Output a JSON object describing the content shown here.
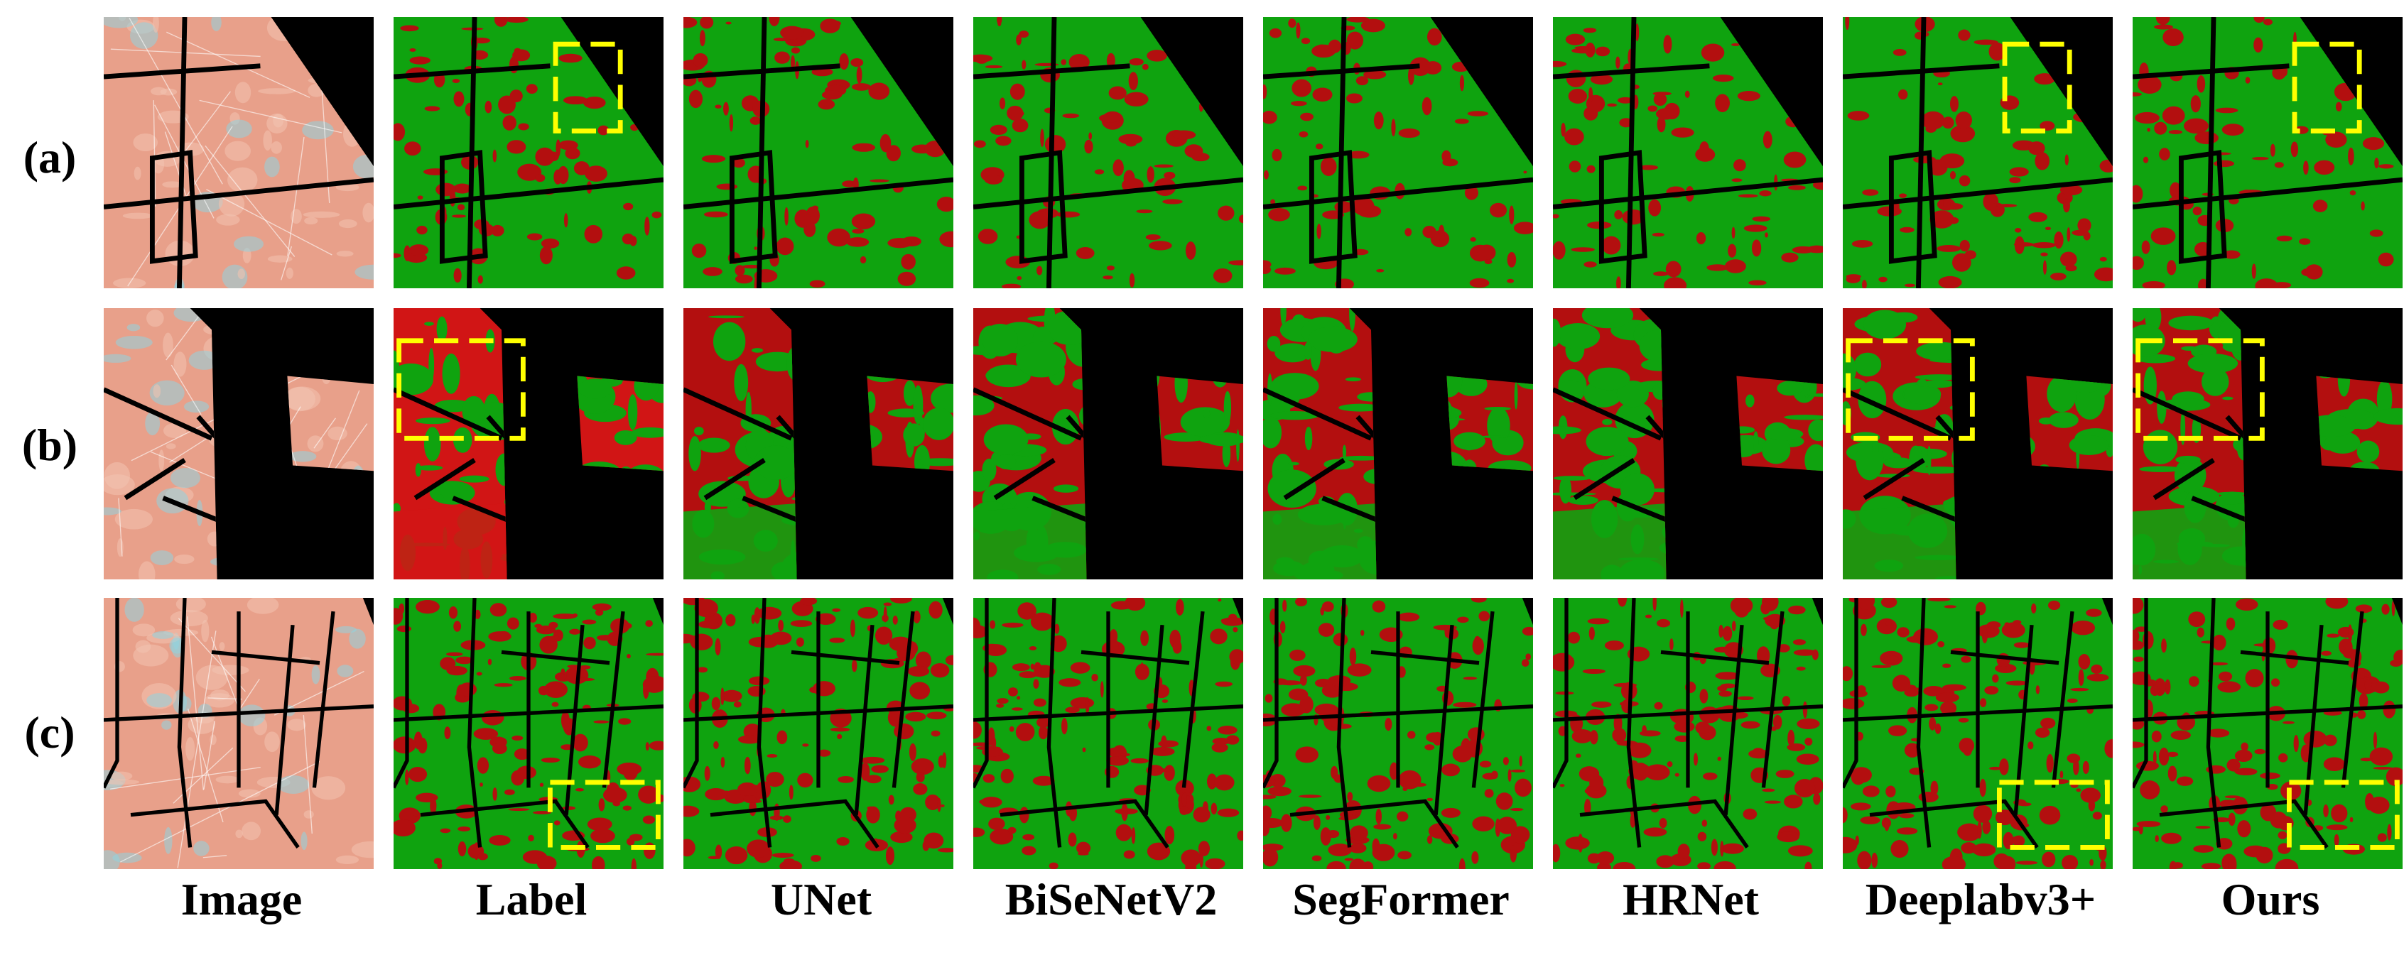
{
  "figure": {
    "rows": [
      {
        "label": "(a)"
      },
      {
        "label": "(b)"
      },
      {
        "label": "(c)"
      }
    ],
    "columns": [
      {
        "label": "Image",
        "kind": "image"
      },
      {
        "label": "Label",
        "kind": "seg"
      },
      {
        "label": "UNet",
        "kind": "seg"
      },
      {
        "label": "BiSeNetV2",
        "kind": "seg"
      },
      {
        "label": "SegFormer",
        "kind": "seg"
      },
      {
        "label": "HRNet",
        "kind": "seg"
      },
      {
        "label": "Deeplabv3+",
        "kind": "seg"
      },
      {
        "label": "Ours",
        "kind": "seg"
      }
    ],
    "highlight_boxes": [
      {
        "row": 0,
        "col": 1
      },
      {
        "row": 0,
        "col": 6
      },
      {
        "row": 0,
        "col": 7
      },
      {
        "row": 1,
        "col": 1
      },
      {
        "row": 1,
        "col": 6
      },
      {
        "row": 1,
        "col": 7
      },
      {
        "row": 2,
        "col": 1
      },
      {
        "row": 2,
        "col": 6
      },
      {
        "row": 2,
        "col": 7
      }
    ],
    "colors": {
      "background": "#000000",
      "class_green": "#0fa30f",
      "class_red": "#b30f0f",
      "red_bright": "#d11515",
      "image_pink": "#e8a08a",
      "image_cyan": "#8fd3e0",
      "highlight": "#ffff00"
    }
  }
}
